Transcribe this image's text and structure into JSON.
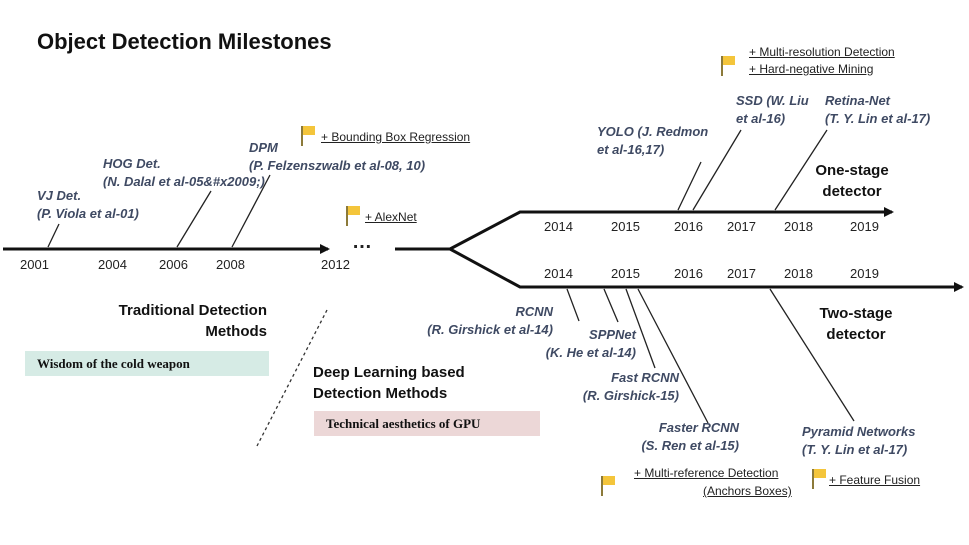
{
  "title": "Object Detection Milestones",
  "colors": {
    "line": "#111111",
    "reference_text": "#3f4a63",
    "flag": "#f4c53b",
    "badge_traditional": "#d6ebe5",
    "badge_deep_learning": "#ecd7d7"
  },
  "traditional_timeline": {
    "years": [
      "2001",
      "2004",
      "2006",
      "2008",
      "2012"
    ],
    "ellipsis": "…",
    "milestones": [
      {
        "line1": "VJ Det.",
        "line2": "(P. Viola et al-01)"
      },
      {
        "line1": "HOG Det.",
        "line2": "(N. Dalal et al-05&#x2009;)"
      },
      {
        "line1": "DPM",
        "line2": "(P. Felzenszwalb et al-08, 10)"
      }
    ],
    "notes": [
      "+ Bounding Box Regression",
      "+ AlexNet"
    ]
  },
  "one_stage": {
    "label_line1": "One-stage",
    "label_line2": "detector",
    "years": [
      "2014",
      "2015",
      "2016",
      "2017",
      "2018",
      "2019"
    ],
    "milestones": [
      {
        "line1": "YOLO (J. Redmon",
        "line2": "et al-16,17)"
      },
      {
        "line1": "SSD (W. Liu",
        "line2": "et al-16)"
      },
      {
        "line1": "Retina-Net",
        "line2": "(T. Y. Lin et al-17)"
      }
    ],
    "notes": [
      "+ Multi-resolution Detection",
      "+ Hard-negative Mining"
    ]
  },
  "two_stage": {
    "label_line1": "Two-stage",
    "label_line2": "detector",
    "years": [
      "2014",
      "2015",
      "2016",
      "2017",
      "2018",
      "2019"
    ],
    "milestones": [
      {
        "line1": "RCNN",
        "line2": "(R. Girshick et al-14)"
      },
      {
        "line1": "SPPNet",
        "line2": "(K. He et al-14)"
      },
      {
        "line1": "Fast RCNN",
        "line2": "(R. Girshick-15)"
      },
      {
        "line1": "Faster RCNN",
        "line2": "(S. Ren et al-15)"
      },
      {
        "line1": "Pyramid Networks",
        "line2": "(T. Y. Lin et al-17)"
      }
    ],
    "notes": [
      "+ Multi-reference Detection",
      "(Anchors Boxes)",
      "+ Feature Fusion"
    ]
  },
  "sections": {
    "traditional": {
      "line1": "Traditional Detection",
      "line2": "Methods",
      "badge": "Wisdom of the cold weapon"
    },
    "deep_learning": {
      "line1": "Deep Learning based",
      "line2": "Detection Methods",
      "badge": "Technical aesthetics of GPU"
    }
  }
}
